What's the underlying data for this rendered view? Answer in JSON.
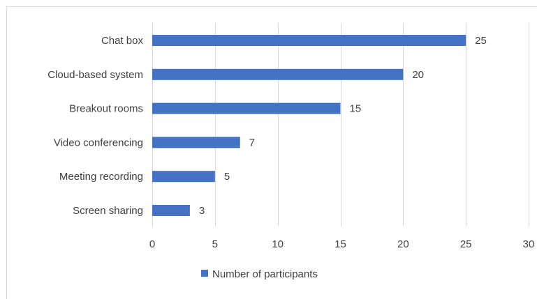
{
  "chart_data": {
    "type": "bar",
    "orientation": "horizontal",
    "categories": [
      "Chat box",
      "Cloud-based system",
      "Breakout rooms",
      "Video conferencing",
      "Meeting recording",
      "Screen sharing"
    ],
    "series": [
      {
        "name": "Number of participants",
        "values": [
          25,
          20,
          15,
          7,
          5,
          3
        ],
        "color": "#4472c4"
      }
    ],
    "xlim": [
      0,
      30
    ],
    "xticks": [
      0,
      5,
      10,
      15,
      20,
      25,
      30
    ],
    "grid": true,
    "data_labels": true,
    "legend_position": "bottom"
  }
}
